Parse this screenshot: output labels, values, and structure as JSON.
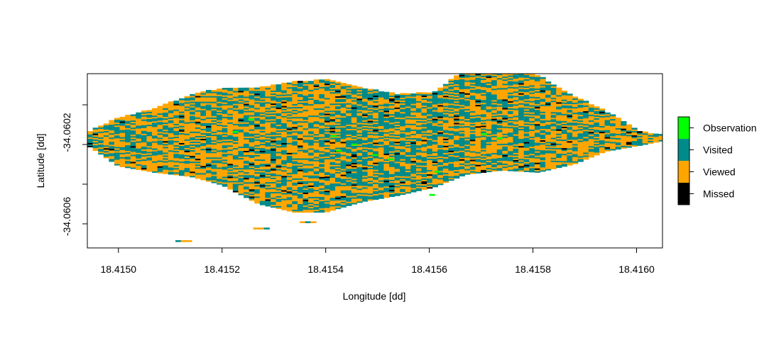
{
  "chart_data": {
    "type": "heatmap",
    "title": "",
    "xlabel": "Longitude [dd]",
    "ylabel": "Latitude [dd]",
    "xlim": [
      18.41494,
      18.41605
    ],
    "ylim": [
      -34.06075,
      -34.05992
    ],
    "x_ticks": [
      "18.4150",
      "18.4152",
      "18.4154",
      "18.4156",
      "18.4158",
      "18.4160"
    ],
    "x_tick_values": [
      18.415,
      18.4152,
      18.4154,
      18.4156,
      18.4158,
      18.416
    ],
    "y_ticks": [
      "-34.0602",
      "-34.0606"
    ],
    "y_tick_values": [
      -34.0602,
      -34.0606
    ],
    "grid": false,
    "legend_position": "right",
    "legend": [
      {
        "label": "Observation",
        "color": "#00ff00"
      },
      {
        "label": "Visited",
        "color": "#008b8b"
      },
      {
        "label": "Viewed",
        "color": "#ffa500"
      },
      {
        "label": "Missed",
        "color": "#000000"
      }
    ],
    "raster": {
      "cell_dx": 1.04e-05,
      "cell_dy": 6.8e-06,
      "extent": [
        {
          "x": 18.41494,
          "y_min": -34.06026,
          "y_max": -34.0602
        },
        {
          "x": 18.415,
          "y_min": -34.06036,
          "y_max": -34.06013
        },
        {
          "x": 18.41507,
          "y_min": -34.06039,
          "y_max": -34.06009
        },
        {
          "x": 18.41514,
          "y_min": -34.06041,
          "y_max": -34.06002
        },
        {
          "x": 18.4152,
          "y_min": -34.06045,
          "y_max": -34.05999
        },
        {
          "x": 18.41527,
          "y_min": -34.06054,
          "y_max": -34.05999
        },
        {
          "x": 18.41534,
          "y_min": -34.06058,
          "y_max": -34.05996
        },
        {
          "x": 18.4154,
          "y_min": -34.06058,
          "y_max": -34.05995
        },
        {
          "x": 18.41547,
          "y_min": -34.06053,
          "y_max": -34.05999
        },
        {
          "x": 18.41554,
          "y_min": -34.0605,
          "y_max": -34.06002
        },
        {
          "x": 18.41561,
          "y_min": -34.06046,
          "y_max": -34.06001
        },
        {
          "x": 18.41567,
          "y_min": -34.0604,
          "y_max": -34.0599
        },
        {
          "x": 18.41574,
          "y_min": -34.06038,
          "y_max": -34.05989
        },
        {
          "x": 18.41581,
          "y_min": -34.06039,
          "y_max": -34.05993
        },
        {
          "x": 18.41588,
          "y_min": -34.06035,
          "y_max": -34.06003
        },
        {
          "x": 18.41594,
          "y_min": -34.06029,
          "y_max": -34.0601
        },
        {
          "x": 18.41601,
          "y_min": -34.06026,
          "y_max": -34.0602
        },
        {
          "x": 18.41605,
          "y_min": -34.06024,
          "y_max": -34.06021
        }
      ],
      "tail": [
        {
          "x": 18.41511,
          "y": -34.06072
        },
        {
          "x": 18.41526,
          "y": -34.06066
        },
        {
          "x": 18.41535,
          "y": -34.06063
        }
      ],
      "missed_patches": [
        {
          "x": [
            18.41511,
            18.41524
          ],
          "y": [
            -34.06033,
            -34.06036
          ]
        },
        {
          "x": [
            18.41525,
            18.41532
          ],
          "y": [
            -34.06036,
            -34.06038
          ]
        },
        {
          "x": [
            18.41507,
            18.41517
          ],
          "y": [
            -34.06026,
            -34.06028
          ]
        },
        {
          "x": [
            18.41528,
            18.41531
          ],
          "y": [
            -34.06037,
            -34.0604
          ]
        },
        {
          "x": [
            18.4152,
            18.41523
          ],
          "y": [
            -34.06018,
            -34.0602
          ]
        },
        {
          "x": [
            18.4154,
            18.41545
          ],
          "y": [
            -34.06047,
            -34.06049
          ]
        },
        {
          "x": [
            18.41531,
            18.41535
          ],
          "y": [
            -34.06055,
            -34.06058
          ]
        },
        {
          "x": [
            18.41545,
            18.4155
          ],
          "y": [
            -34.06054,
            -34.06056
          ]
        },
        {
          "x": [
            18.41573,
            18.41576
          ],
          "y": [
            -34.06034,
            -34.06036
          ]
        },
        {
          "x": [
            18.41568,
            18.41572
          ],
          "y": [
            -34.06001,
            -34.06003
          ]
        },
        {
          "x": [
            18.41584,
            18.41592
          ],
          "y": [
            -34.06019,
            -34.06023
          ]
        },
        {
          "x": [
            18.41588,
            18.41592
          ],
          "y": [
            -34.06023,
            -34.06034
          ]
        },
        {
          "x": [
            18.41576,
            18.4158
          ],
          "y": [
            -34.0603,
            -34.06033
          ]
        },
        {
          "x": [
            18.41589,
            18.41595
          ],
          "y": [
            -34.06009,
            -34.06011
          ]
        },
        {
          "x": [
            18.41586,
            18.41589
          ],
          "y": [
            -34.06011,
            -34.06014
          ]
        }
      ],
      "observation_cells": [
        {
          "x": 18.41522,
          "y": -34.0602
        },
        {
          "x": 18.41525,
          "y": -34.06014
        },
        {
          "x": 18.41541,
          "y": -34.06022
        },
        {
          "x": 18.41542,
          "y": -34.06029
        },
        {
          "x": 18.41545,
          "y": -34.06026
        },
        {
          "x": 18.41549,
          "y": -34.06031
        },
        {
          "x": 18.41552,
          "y": -34.06033
        },
        {
          "x": 18.4157,
          "y": -34.06021
        },
        {
          "x": 18.41573,
          "y": -34.06023
        },
        {
          "x": 18.41561,
          "y": -34.06039
        },
        {
          "x": 18.4156,
          "y": -34.0605
        }
      ]
    }
  }
}
